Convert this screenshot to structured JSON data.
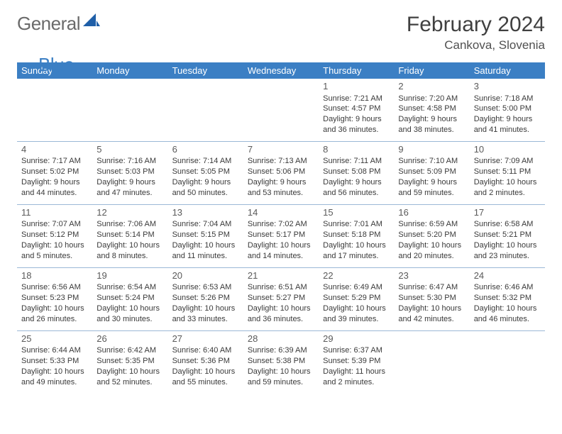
{
  "logo": {
    "general": "General",
    "blue": "Blue"
  },
  "title": "February 2024",
  "location": "Cankova, Slovenia",
  "colors": {
    "header_bg": "#3b7fc4",
    "header_fg": "#ffffff",
    "rule": "#9bb8d6",
    "text": "#3a3a3a",
    "title": "#404040"
  },
  "dayNames": [
    "Sunday",
    "Monday",
    "Tuesday",
    "Wednesday",
    "Thursday",
    "Friday",
    "Saturday"
  ],
  "startOffset": 4,
  "days": [
    {
      "n": 1,
      "sr": "7:21 AM",
      "ss": "4:57 PM",
      "dl": "9 hours and 36 minutes."
    },
    {
      "n": 2,
      "sr": "7:20 AM",
      "ss": "4:58 PM",
      "dl": "9 hours and 38 minutes."
    },
    {
      "n": 3,
      "sr": "7:18 AM",
      "ss": "5:00 PM",
      "dl": "9 hours and 41 minutes."
    },
    {
      "n": 4,
      "sr": "7:17 AM",
      "ss": "5:02 PM",
      "dl": "9 hours and 44 minutes."
    },
    {
      "n": 5,
      "sr": "7:16 AM",
      "ss": "5:03 PM",
      "dl": "9 hours and 47 minutes."
    },
    {
      "n": 6,
      "sr": "7:14 AM",
      "ss": "5:05 PM",
      "dl": "9 hours and 50 minutes."
    },
    {
      "n": 7,
      "sr": "7:13 AM",
      "ss": "5:06 PM",
      "dl": "9 hours and 53 minutes."
    },
    {
      "n": 8,
      "sr": "7:11 AM",
      "ss": "5:08 PM",
      "dl": "9 hours and 56 minutes."
    },
    {
      "n": 9,
      "sr": "7:10 AM",
      "ss": "5:09 PM",
      "dl": "9 hours and 59 minutes."
    },
    {
      "n": 10,
      "sr": "7:09 AM",
      "ss": "5:11 PM",
      "dl": "10 hours and 2 minutes."
    },
    {
      "n": 11,
      "sr": "7:07 AM",
      "ss": "5:12 PM",
      "dl": "10 hours and 5 minutes."
    },
    {
      "n": 12,
      "sr": "7:06 AM",
      "ss": "5:14 PM",
      "dl": "10 hours and 8 minutes."
    },
    {
      "n": 13,
      "sr": "7:04 AM",
      "ss": "5:15 PM",
      "dl": "10 hours and 11 minutes."
    },
    {
      "n": 14,
      "sr": "7:02 AM",
      "ss": "5:17 PM",
      "dl": "10 hours and 14 minutes."
    },
    {
      "n": 15,
      "sr": "7:01 AM",
      "ss": "5:18 PM",
      "dl": "10 hours and 17 minutes."
    },
    {
      "n": 16,
      "sr": "6:59 AM",
      "ss": "5:20 PM",
      "dl": "10 hours and 20 minutes."
    },
    {
      "n": 17,
      "sr": "6:58 AM",
      "ss": "5:21 PM",
      "dl": "10 hours and 23 minutes."
    },
    {
      "n": 18,
      "sr": "6:56 AM",
      "ss": "5:23 PM",
      "dl": "10 hours and 26 minutes."
    },
    {
      "n": 19,
      "sr": "6:54 AM",
      "ss": "5:24 PM",
      "dl": "10 hours and 30 minutes."
    },
    {
      "n": 20,
      "sr": "6:53 AM",
      "ss": "5:26 PM",
      "dl": "10 hours and 33 minutes."
    },
    {
      "n": 21,
      "sr": "6:51 AM",
      "ss": "5:27 PM",
      "dl": "10 hours and 36 minutes."
    },
    {
      "n": 22,
      "sr": "6:49 AM",
      "ss": "5:29 PM",
      "dl": "10 hours and 39 minutes."
    },
    {
      "n": 23,
      "sr": "6:47 AM",
      "ss": "5:30 PM",
      "dl": "10 hours and 42 minutes."
    },
    {
      "n": 24,
      "sr": "6:46 AM",
      "ss": "5:32 PM",
      "dl": "10 hours and 46 minutes."
    },
    {
      "n": 25,
      "sr": "6:44 AM",
      "ss": "5:33 PM",
      "dl": "10 hours and 49 minutes."
    },
    {
      "n": 26,
      "sr": "6:42 AM",
      "ss": "5:35 PM",
      "dl": "10 hours and 52 minutes."
    },
    {
      "n": 27,
      "sr": "6:40 AM",
      "ss": "5:36 PM",
      "dl": "10 hours and 55 minutes."
    },
    {
      "n": 28,
      "sr": "6:39 AM",
      "ss": "5:38 PM",
      "dl": "10 hours and 59 minutes."
    },
    {
      "n": 29,
      "sr": "6:37 AM",
      "ss": "5:39 PM",
      "dl": "11 hours and 2 minutes."
    }
  ],
  "labels": {
    "sunrise": "Sunrise:",
    "sunset": "Sunset:",
    "daylight": "Daylight:"
  }
}
